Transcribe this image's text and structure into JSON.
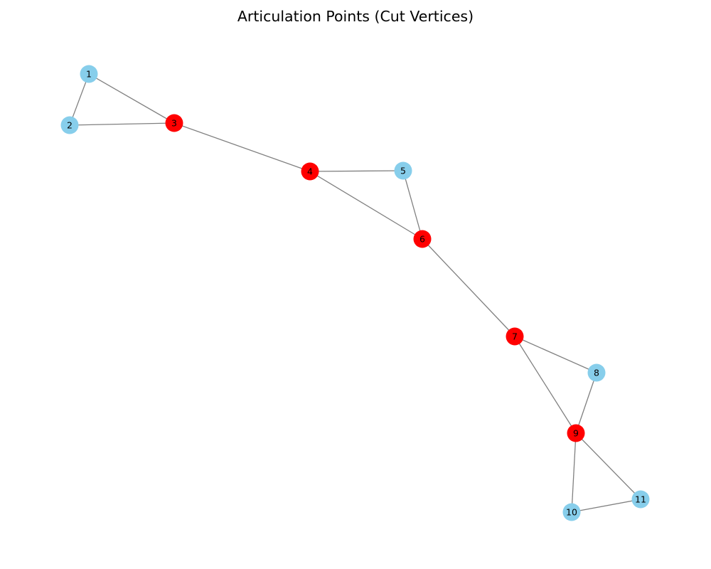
{
  "title": "Articulation Points (Cut Vertices)",
  "colors": {
    "regular_node": "#87ceeb",
    "articulation_node": "#ff0000",
    "edge": "#808080"
  },
  "nodes": [
    {
      "id": "1",
      "label": "1",
      "articulation": false
    },
    {
      "id": "2",
      "label": "2",
      "articulation": false
    },
    {
      "id": "3",
      "label": "3",
      "articulation": true
    },
    {
      "id": "4",
      "label": "4",
      "articulation": true
    },
    {
      "id": "5",
      "label": "5",
      "articulation": false
    },
    {
      "id": "6",
      "label": "6",
      "articulation": true
    },
    {
      "id": "7",
      "label": "7",
      "articulation": true
    },
    {
      "id": "8",
      "label": "8",
      "articulation": false
    },
    {
      "id": "9",
      "label": "9",
      "articulation": true
    },
    {
      "id": "10",
      "label": "10",
      "articulation": false
    },
    {
      "id": "11",
      "label": "11",
      "articulation": false
    }
  ],
  "edges": [
    [
      "1",
      "2"
    ],
    [
      "1",
      "3"
    ],
    [
      "2",
      "3"
    ],
    [
      "3",
      "4"
    ],
    [
      "4",
      "5"
    ],
    [
      "4",
      "6"
    ],
    [
      "5",
      "6"
    ],
    [
      "6",
      "7"
    ],
    [
      "7",
      "8"
    ],
    [
      "7",
      "9"
    ],
    [
      "8",
      "9"
    ],
    [
      "9",
      "10"
    ],
    [
      "9",
      "11"
    ],
    [
      "10",
      "11"
    ]
  ]
}
